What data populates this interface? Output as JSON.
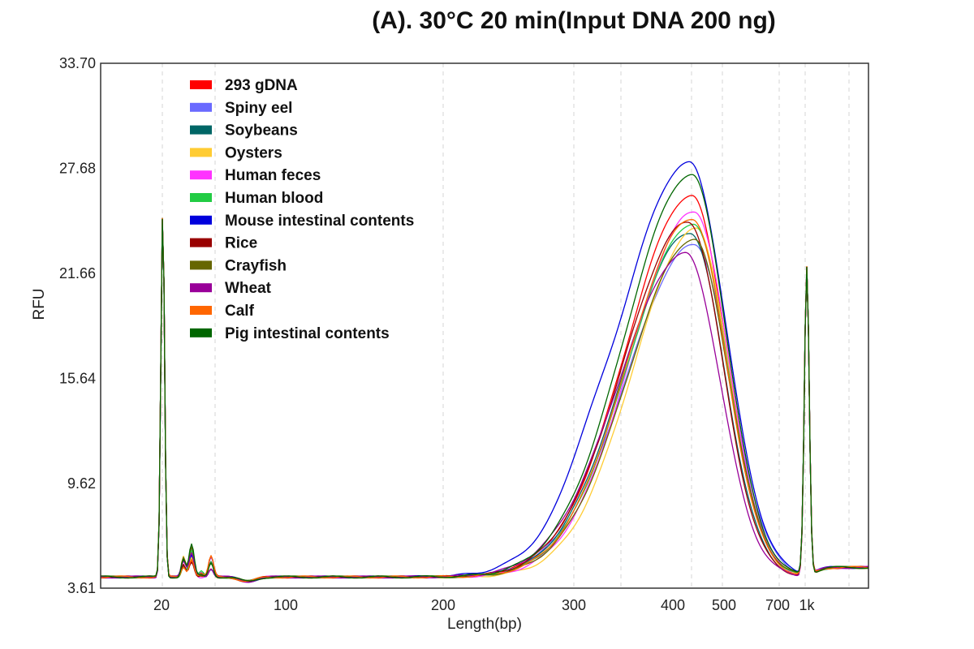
{
  "chart_data": {
    "type": "line",
    "title": "(A). 30°C 20 min(Input DNA 200 ng)",
    "xlabel": "Length(bp)",
    "ylabel": "RFU",
    "y_ticks": [
      "3.61",
      "9.62",
      "15.64",
      "21.66",
      "27.68",
      "33.70"
    ],
    "ylim": [
      3.61,
      33.7
    ],
    "x_ticks": [
      "20",
      "100",
      "200",
      "300",
      "400",
      "500",
      "700",
      "1k"
    ],
    "legend_position": "top-left",
    "grid": "vertical dashed",
    "series": [
      {
        "name": "293 gDNA",
        "color": "#ff0000",
        "peak_rfu": 26.1,
        "peak_pos": 0.0,
        "width_scale": 1.0
      },
      {
        "name": "Spiny eel",
        "color": "#6a6aff",
        "peak_rfu": 23.3,
        "peak_pos": 0.004,
        "width_scale": 1.04
      },
      {
        "name": "Soybeans",
        "color": "#006666",
        "peak_rfu": 24.0,
        "peak_pos": -0.002,
        "width_scale": 1.0
      },
      {
        "name": "Oysters",
        "color": "#ffcc33",
        "peak_rfu": 24.2,
        "peak_pos": 0.006,
        "width_scale": 0.96
      },
      {
        "name": "Human feces",
        "color": "#ff33ff",
        "peak_rfu": 25.2,
        "peak_pos": 0.004,
        "width_scale": 0.98
      },
      {
        "name": "Human blood",
        "color": "#22cc44",
        "peak_rfu": 24.5,
        "peak_pos": 0.002,
        "width_scale": 1.0
      },
      {
        "name": "Mouse  intestinal contents",
        "color": "#0000dd",
        "peak_rfu": 28.0,
        "peak_pos": -0.003,
        "width_scale": 1.08
      },
      {
        "name": "Rice",
        "color": "#990000",
        "peak_rfu": 24.6,
        "peak_pos": -0.004,
        "width_scale": 1.0
      },
      {
        "name": "Crayfish",
        "color": "#666600",
        "peak_rfu": 23.6,
        "peak_pos": 0.003,
        "width_scale": 1.0
      },
      {
        "name": "Wheat",
        "color": "#990099",
        "peak_rfu": 22.8,
        "peak_pos": -0.008,
        "width_scale": 1.02
      },
      {
        "name": "Calf",
        "color": "#ff6600",
        "peak_rfu": 24.8,
        "peak_pos": 0.001,
        "width_scale": 0.99
      },
      {
        "name": "Pig intestinal contents",
        "color": "#006600",
        "peak_rfu": 27.3,
        "peak_pos": 0.0,
        "width_scale": 1.02
      }
    ]
  }
}
